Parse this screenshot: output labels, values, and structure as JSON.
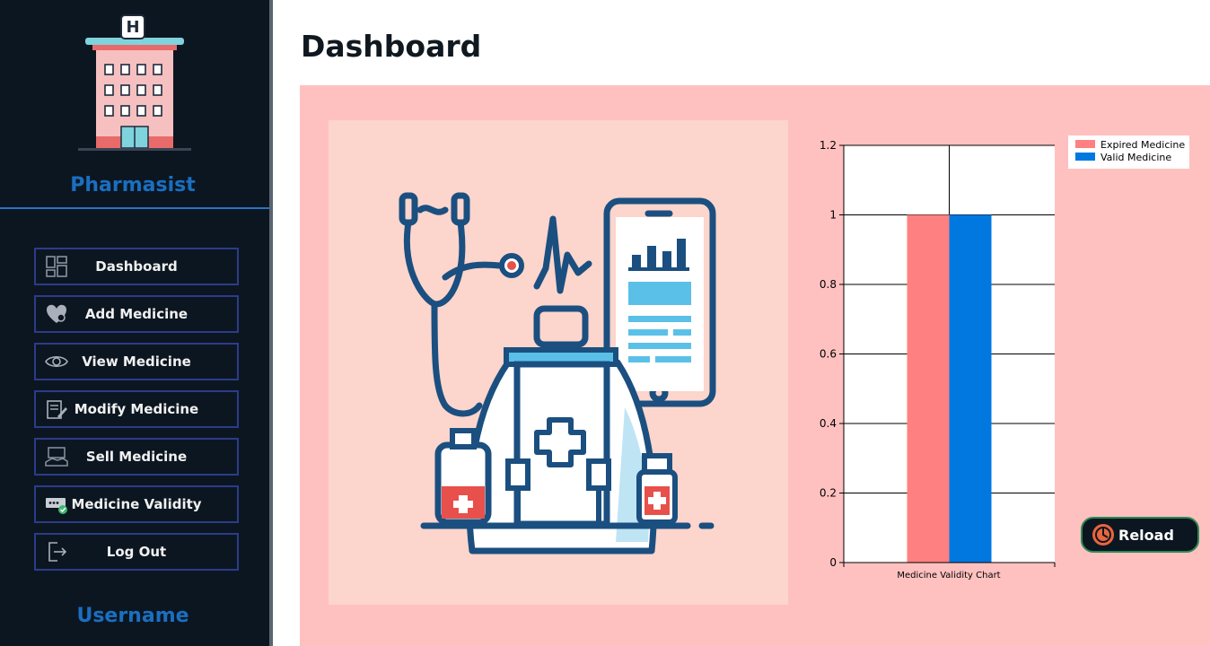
{
  "sidebar": {
    "role": "Pharmasist",
    "username": "Username",
    "items": [
      {
        "label": "Dashboard",
        "icon": "dashboard-icon"
      },
      {
        "label": "Add Medicine",
        "icon": "heart-pills-icon"
      },
      {
        "label": "View Medicine",
        "icon": "eye-icon"
      },
      {
        "label": "Modify Medicine",
        "icon": "edit-document-icon"
      },
      {
        "label": "Sell Medicine",
        "icon": "cash-register-icon"
      },
      {
        "label": "Medicine Validity",
        "icon": "validity-check-icon"
      },
      {
        "label": "Log Out",
        "icon": "logout-icon"
      }
    ],
    "logo_sign": "H"
  },
  "main": {
    "title": "Dashboard",
    "reload_label": "Reload"
  },
  "colors": {
    "sidebar_bg": "#0c1621",
    "accent_blue": "#1a6fc0",
    "panel_bg": "#ffc1c0",
    "expired": "#ff8080",
    "valid": "#0078e0"
  },
  "chart_data": {
    "type": "bar",
    "categories": [
      "Medicine Validity Chart"
    ],
    "series": [
      {
        "name": "Expired Medicine",
        "values": [
          1
        ],
        "color": "#ff8080"
      },
      {
        "name": "Valid Medicine",
        "values": [
          1
        ],
        "color": "#0078e0"
      }
    ],
    "xlabel": "Medicine Validity Chart",
    "ylim": [
      0,
      1.2
    ],
    "yticks": [
      "0",
      "0.2",
      "0.4",
      "0.6",
      "0.8",
      "1",
      "1.2"
    ],
    "grid": true,
    "legend": "top-right"
  }
}
